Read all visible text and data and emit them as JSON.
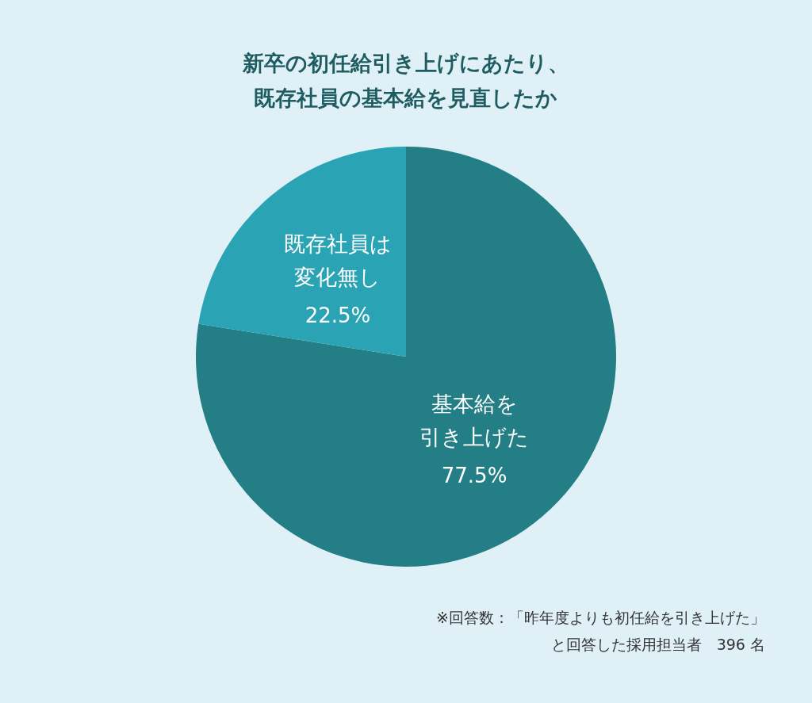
{
  "chart_data": {
    "type": "pie",
    "title": "新卒の初任給引き上げにあたり、既存社員の基本給を見直したか",
    "categories": [
      "基本給を引き上げた",
      "既存社員は変化無し"
    ],
    "values": [
      77.5,
      22.5
    ],
    "colors": [
      "#237e85",
      "#2aa3b4"
    ],
    "value_labels": [
      "77.5%",
      "22.5%"
    ],
    "annotations": [
      "※回答数：「昨年度よりも初任給を引き上げた」と回答した採用担当者　396 名"
    ]
  }
}
